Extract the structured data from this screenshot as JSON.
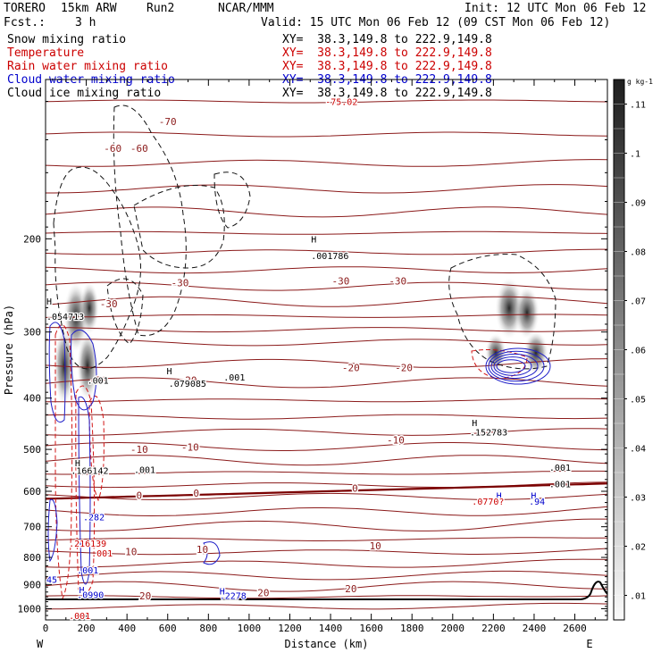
{
  "header": {
    "model": "TORERO",
    "resolution": "15km ARW",
    "run": "Run2",
    "center": "NCAR/MMM",
    "init": "Init: 12 UTC Mon 06 Feb 12",
    "fcst_label": "Fcst.:",
    "fcst_value": "3 h",
    "valid": "Valid: 15 UTC Mon 06 Feb 12 (09 CST Mon 06 Feb 12)"
  },
  "legend": [
    {
      "label": "Snow mixing ratio",
      "color": "#000000",
      "xy": "XY=  38.3,149.8 to 222.9,149.8",
      "xy_color": "#000000"
    },
    {
      "label": "Temperature",
      "color": "#cc0000",
      "xy": "XY=  38.3,149.8 to 222.9,149.8",
      "xy_color": "#cc0000"
    },
    {
      "label": "Rain water mixing ratio",
      "color": "#cc0000",
      "xy": "XY=  38.3,149.8 to 222.9,149.8",
      "xy_color": "#cc0000"
    },
    {
      "label": "Cloud water mixing ratio",
      "color": "#0000cc",
      "xy": "XY=  38.3,149.8 to 222.9,149.8",
      "xy_color": "#0000cc"
    },
    {
      "label": "Cloud ice mixing ratio",
      "color": "#000000",
      "xy": "XY=  38.3,149.8 to 222.9,149.8",
      "xy_color": "#000000"
    }
  ],
  "chart_data": {
    "type": "contour cross-section",
    "ylabel": "Pressure (hPa)",
    "xlabel": "Distance (km)",
    "xlim": [
      0,
      2760
    ],
    "ylim": [
      1050,
      100
    ],
    "y_scale": "log",
    "x_ticks": [
      0,
      200,
      400,
      600,
      800,
      1000,
      1200,
      1400,
      1600,
      1800,
      2000,
      2200,
      2400,
      2600
    ],
    "y_ticks": [
      200,
      300,
      400,
      500,
      600,
      700,
      800,
      900,
      1000
    ],
    "x_endpoints": {
      "left": "W",
      "right": "E"
    },
    "colorbar": {
      "unit": "g kg-1",
      "ticks": [
        ".11",
        ".1",
        ".09",
        ".08",
        ".07",
        ".06",
        ".05",
        ".04",
        ".03",
        ".02",
        ".01"
      ],
      "values": [
        0.11,
        0.1,
        0.09,
        0.08,
        0.07,
        0.06,
        0.05,
        0.04,
        0.03,
        0.02,
        0.01
      ]
    },
    "temperature_contours": [
      {
        "level": -70,
        "label": "-70"
      },
      {
        "level": -60,
        "label": "-60"
      },
      {
        "level": -30,
        "label": "-30"
      },
      {
        "level": -20,
        "label": "-20"
      },
      {
        "level": -10,
        "label": "-10"
      },
      {
        "level": 0,
        "label": "0"
      },
      {
        "level": 10,
        "label": "10"
      },
      {
        "level": 20,
        "label": "20"
      }
    ],
    "annotations": [
      {
        "text": "-75.02",
        "x": 1370,
        "p": 110,
        "color": "#cc0000"
      },
      {
        "text": "H",
        "x": 1300,
        "p": 200,
        "color": "#000000"
      },
      {
        "text": ".001786",
        "x": 1300,
        "p": 215,
        "color": "#000000"
      },
      {
        "text": "H",
        "x": 0,
        "p": 262,
        "color": "#000000"
      },
      {
        "text": ".054713",
        "x": 0,
        "p": 280,
        "color": "#000000"
      },
      {
        "text": "H",
        "x": 590,
        "p": 355,
        "color": "#000000"
      },
      {
        "text": ".079085",
        "x": 600,
        "p": 375,
        "color": "#000000"
      },
      {
        "text": ".001",
        "x": 200,
        "p": 370,
        "color": "#000000"
      },
      {
        "text": ".001",
        "x": 870,
        "p": 365,
        "color": "#000000"
      },
      {
        "text": "H",
        "x": 2090,
        "p": 445,
        "color": "#000000"
      },
      {
        "text": ".152783",
        "x": 2080,
        "p": 463,
        "color": "#000000"
      },
      {
        "text": ".001",
        "x": 430,
        "p": 545,
        "color": "#000000"
      },
      {
        "text": "H",
        "x": 140,
        "p": 530,
        "color": "#000000"
      },
      {
        "text": ".166142",
        "x": 120,
        "p": 548,
        "color": "#000000"
      },
      {
        "text": ".001",
        "x": 2470,
        "p": 540,
        "color": "#000000"
      },
      {
        "text": ".001",
        "x": 2470,
        "p": 580,
        "color": "#000000"
      },
      {
        "text": "H",
        "x": 2380,
        "p": 610,
        "color": "#0000cc"
      },
      {
        "text": ".94",
        "x": 2370,
        "p": 626,
        "color": "#0000cc"
      },
      {
        "text": "H",
        "x": 2210,
        "p": 610,
        "color": "#0000cc"
      },
      {
        "text": ".0770?",
        "x": 2090,
        "p": 626,
        "color": "#cc0000"
      },
      {
        "text": ".282",
        "x": 180,
        "p": 670,
        "color": "#0000cc"
      },
      {
        "text": ".216139",
        "x": 110,
        "p": 752,
        "color": "#cc0000"
      },
      {
        "text": ".001",
        "x": 220,
        "p": 785,
        "color": "#cc0000"
      },
      {
        "text": ".001",
        "x": 150,
        "p": 845,
        "color": "#0000cc"
      },
      {
        "text": "45",
        "x": 0,
        "p": 880,
        "color": "#0000cc"
      },
      {
        "text": "H",
        "x": 160,
        "p": 920,
        "color": "#0000cc"
      },
      {
        "text": ".0990",
        "x": 150,
        "p": 940,
        "color": "#0000cc"
      },
      {
        "text": "H",
        "x": 850,
        "p": 925,
        "color": "#0000cc"
      },
      {
        "text": ".2278",
        "x": 850,
        "p": 944,
        "color": "#0000cc"
      },
      {
        "text": ".001",
        "x": 110,
        "p": 1030,
        "color": "#cc0000"
      }
    ]
  }
}
